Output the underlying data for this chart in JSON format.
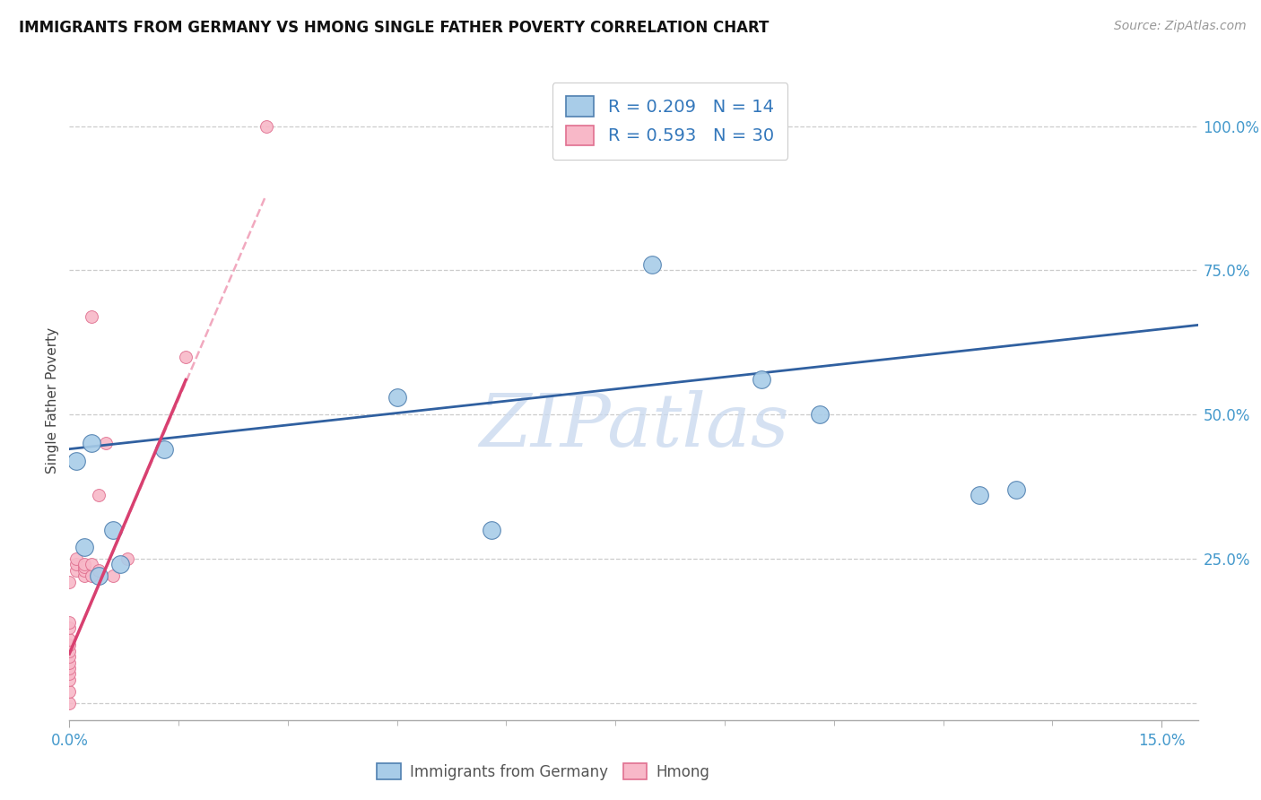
{
  "title": "IMMIGRANTS FROM GERMANY VS HMONG SINGLE FATHER POVERTY CORRELATION CHART",
  "source": "Source: ZipAtlas.com",
  "ylabel": "Single Father Poverty",
  "xlim": [
    0.0,
    0.155
  ],
  "ylim": [
    -0.03,
    1.08
  ],
  "xtick_major": [
    0.0,
    0.15
  ],
  "xtick_major_labels": [
    "0.0%",
    "15.0%"
  ],
  "xtick_minor": [
    0.015,
    0.03,
    0.045,
    0.06,
    0.075,
    0.09,
    0.105,
    0.12,
    0.135
  ],
  "ytick_positions": [
    0.0,
    0.25,
    0.5,
    0.75,
    1.0
  ],
  "ytick_labels_right": [
    "",
    "25.0%",
    "50.0%",
    "75.0%",
    "100.0%"
  ],
  "germany_R": 0.209,
  "germany_N": 14,
  "hmong_R": 0.593,
  "hmong_N": 30,
  "germany_scatter_color": "#A8CCE8",
  "germany_scatter_edge": "#5080B0",
  "hmong_scatter_color": "#F8B8C8",
  "hmong_scatter_edge": "#E07090",
  "germany_line_color": "#3060A0",
  "hmong_line_color": "#D84070",
  "hmong_dashed_color": "#F0A0B8",
  "watermark_color": "#C8D8EE",
  "grid_color": "#CCCCCC",
  "background_color": "#FFFFFF",
  "germany_points": [
    [
      0.001,
      0.42
    ],
    [
      0.002,
      0.27
    ],
    [
      0.003,
      0.45
    ],
    [
      0.004,
      0.22
    ],
    [
      0.006,
      0.3
    ],
    [
      0.007,
      0.24
    ],
    [
      0.013,
      0.44
    ],
    [
      0.045,
      0.53
    ],
    [
      0.058,
      0.3
    ],
    [
      0.08,
      0.76
    ],
    [
      0.095,
      0.56
    ],
    [
      0.103,
      0.5
    ],
    [
      0.125,
      0.36
    ],
    [
      0.13,
      0.37
    ]
  ],
  "hmong_points": [
    [
      0.0,
      0.0
    ],
    [
      0.0,
      0.02
    ],
    [
      0.0,
      0.04
    ],
    [
      0.0,
      0.05
    ],
    [
      0.0,
      0.06
    ],
    [
      0.0,
      0.07
    ],
    [
      0.0,
      0.08
    ],
    [
      0.0,
      0.09
    ],
    [
      0.0,
      0.1
    ],
    [
      0.0,
      0.11
    ],
    [
      0.0,
      0.13
    ],
    [
      0.0,
      0.14
    ],
    [
      0.0,
      0.21
    ],
    [
      0.001,
      0.23
    ],
    [
      0.001,
      0.24
    ],
    [
      0.001,
      0.25
    ],
    [
      0.002,
      0.22
    ],
    [
      0.002,
      0.23
    ],
    [
      0.002,
      0.235
    ],
    [
      0.002,
      0.24
    ],
    [
      0.003,
      0.22
    ],
    [
      0.003,
      0.24
    ],
    [
      0.003,
      0.67
    ],
    [
      0.004,
      0.23
    ],
    [
      0.004,
      0.36
    ],
    [
      0.005,
      0.45
    ],
    [
      0.006,
      0.22
    ],
    [
      0.008,
      0.25
    ],
    [
      0.016,
      0.6
    ],
    [
      0.027,
      1.0
    ]
  ],
  "germany_trendline": [
    0.0,
    0.44,
    0.155,
    0.655
  ],
  "hmong_solid_line": [
    0.0,
    0.085,
    0.016,
    0.56
  ],
  "hmong_dashed_line": [
    0.0,
    0.085,
    0.027,
    0.88
  ]
}
